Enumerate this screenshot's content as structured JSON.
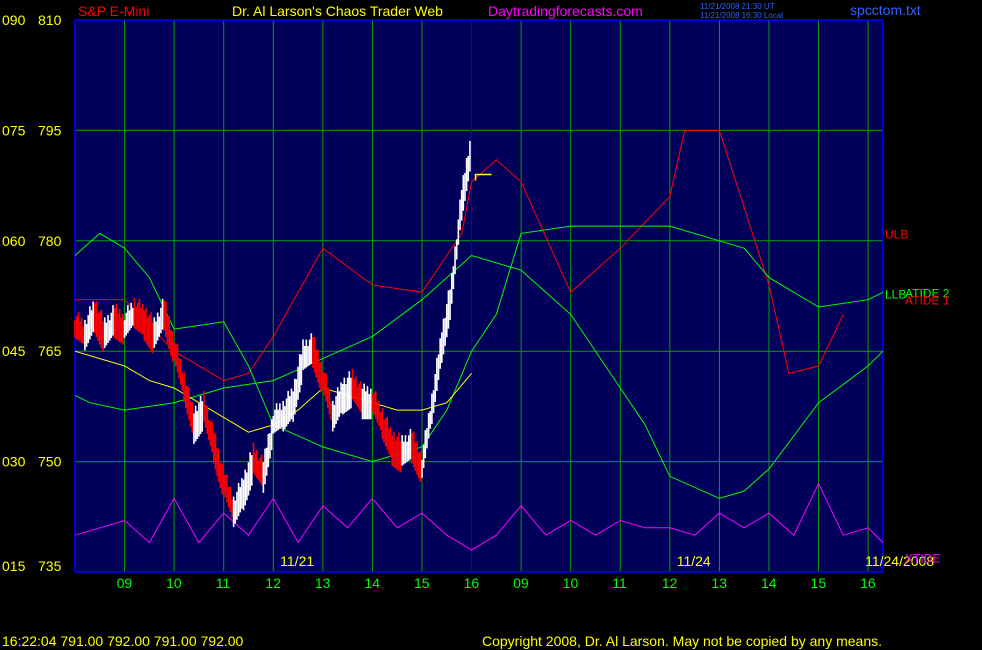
{
  "header": {
    "left_code": "090",
    "left_price": "810",
    "symbol": "S&P E-Mini",
    "title": "Dr. Al Larson's Chaos Trader Web",
    "site": "Daytradingforecasts.com",
    "time_ut": "11/21/2008 21:30 UT",
    "time_local": "11/21/2008 16:30 Local",
    "file": "spcctom.txt"
  },
  "footer": {
    "quote": "16:22:04  791.00 792.00 791.00 792.00",
    "copyright": "Copyright 2008, Dr. Al Larson. May not be copied by any means."
  },
  "colors": {
    "background": "#000000",
    "plot_bg": "#00005a",
    "grid": "#00a000",
    "frame": "#0000ff",
    "price_bars": "#ffffff",
    "price_down": "#ff0000",
    "ulb": "#ff0000",
    "llb": "#00ff00",
    "atide": "#ffff00",
    "xtide": "#ff00ff",
    "title": "#ffff00",
    "site": "#ff00ff",
    "file": "#3060ff",
    "xticks": "#00ff00",
    "ylabels": "#ffff00"
  },
  "chart_data": {
    "type": "line",
    "title": "S&P E-Mini",
    "ylim": [
      735,
      810
    ],
    "y_ticks": [
      {
        "value": 735,
        "code": "015",
        "label": "735"
      },
      {
        "value": 750,
        "code": "030",
        "label": "750"
      },
      {
        "value": 765,
        "code": "045",
        "label": "765"
      },
      {
        "value": 780,
        "code": "060",
        "label": "780"
      },
      {
        "value": 795,
        "code": "075",
        "label": "795"
      },
      {
        "value": 810,
        "code": "090",
        "label": "810"
      }
    ],
    "x_tick_labels": [
      "09",
      "10",
      "11",
      "12",
      "13",
      "14",
      "15",
      "16",
      "09",
      "10",
      "11",
      "12",
      "13",
      "14",
      "15",
      "16"
    ],
    "date_labels": [
      "11/21",
      "11/24",
      "11/24/2008"
    ],
    "legend": [
      "ULB",
      "ATIDE 2",
      "ATIDE 1",
      "LLB",
      "XTIDE"
    ],
    "series": [
      {
        "name": "Price",
        "x": [
          0,
          0.2,
          0.4,
          0.6,
          0.8,
          1.0,
          1.2,
          1.4,
          1.6,
          1.8,
          2.0,
          2.2,
          2.4,
          2.6,
          2.8,
          3.0,
          3.2,
          3.4,
          3.6,
          3.8,
          4.0,
          4.2,
          4.4,
          4.6,
          4.8,
          5.0,
          5.2,
          5.4,
          5.6,
          5.8,
          6.0,
          6.2,
          6.4,
          6.6,
          6.8,
          7.0,
          7.2,
          7.4,
          7.6,
          7.8,
          8.0
        ],
        "y": [
          768,
          767,
          770,
          767,
          769,
          768,
          770,
          769,
          767,
          770,
          765,
          760,
          755,
          757,
          752,
          747,
          743,
          746,
          750,
          748,
          755,
          756,
          758,
          764,
          765,
          761,
          756,
          759,
          760,
          758,
          758,
          755,
          752,
          751,
          752,
          749,
          757,
          766,
          773,
          785,
          793
        ]
      },
      {
        "name": "ULB",
        "x": [
          0,
          1,
          2,
          3,
          3.5,
          4,
          5,
          6,
          7,
          7.8,
          8,
          8.5,
          9,
          10,
          11,
          12,
          12.3,
          13,
          14,
          14.4,
          15,
          15.5
        ],
        "y": [
          772,
          772,
          765,
          761,
          762,
          767,
          779,
          774,
          773,
          781,
          788,
          791,
          788,
          773,
          779,
          786,
          795,
          795,
          774,
          762,
          763,
          770
        ]
      },
      {
        "name": "LLB",
        "x": [
          0,
          0.3,
          1,
          2,
          3,
          4,
          5,
          6,
          7,
          8,
          9,
          10,
          11,
          11.5,
          12,
          13,
          13.5,
          14,
          15,
          16,
          16.3
        ],
        "y": [
          759,
          758,
          757,
          758,
          760,
          761,
          764,
          767,
          772,
          778,
          776,
          770,
          760,
          755,
          748,
          745,
          746,
          749,
          758,
          763,
          765
        ]
      },
      {
        "name": "ATIDE 2",
        "x": [
          0,
          0.5,
          1,
          1.5,
          2,
          3,
          3.5,
          4,
          5,
          6,
          7,
          7.5,
          8,
          8.5,
          9,
          10,
          11,
          12,
          13,
          13.5,
          14,
          15,
          16,
          16.3
        ],
        "y": [
          778,
          781,
          779,
          775,
          768,
          769,
          763,
          755,
          752,
          750,
          752,
          757,
          765,
          770,
          781,
          782,
          782,
          782,
          780,
          779,
          775,
          771,
          772,
          773
        ]
      },
      {
        "name": "ATIDE 1",
        "x": [
          0,
          0.5,
          1,
          1.5,
          2,
          2.5,
          3,
          3.5,
          4,
          4.5,
          5,
          5.5,
          6,
          6.5,
          7,
          7.5,
          8
        ],
        "y": [
          765,
          764,
          763,
          761,
          760,
          758,
          756,
          754,
          755,
          757,
          760,
          759,
          758,
          757,
          757,
          758,
          762
        ]
      },
      {
        "name": "XTIDE",
        "x": [
          0,
          1,
          1.5,
          2,
          2.5,
          3,
          3.5,
          4,
          4.5,
          5,
          5.5,
          6,
          6.5,
          7,
          7.5,
          8,
          8.5,
          9,
          9.5,
          10,
          10.5,
          11,
          11.5,
          12,
          12.5,
          13,
          13.5,
          14,
          14.5,
          15,
          15.5,
          16,
          16.3
        ],
        "y": [
          740,
          742,
          739,
          745,
          739,
          743,
          740,
          745,
          739,
          744,
          741,
          745,
          741,
          743,
          740,
          738,
          740,
          744,
          740,
          742,
          740,
          742,
          741,
          741,
          740,
          743,
          741,
          743,
          740,
          747,
          740,
          741,
          739
        ]
      }
    ]
  }
}
